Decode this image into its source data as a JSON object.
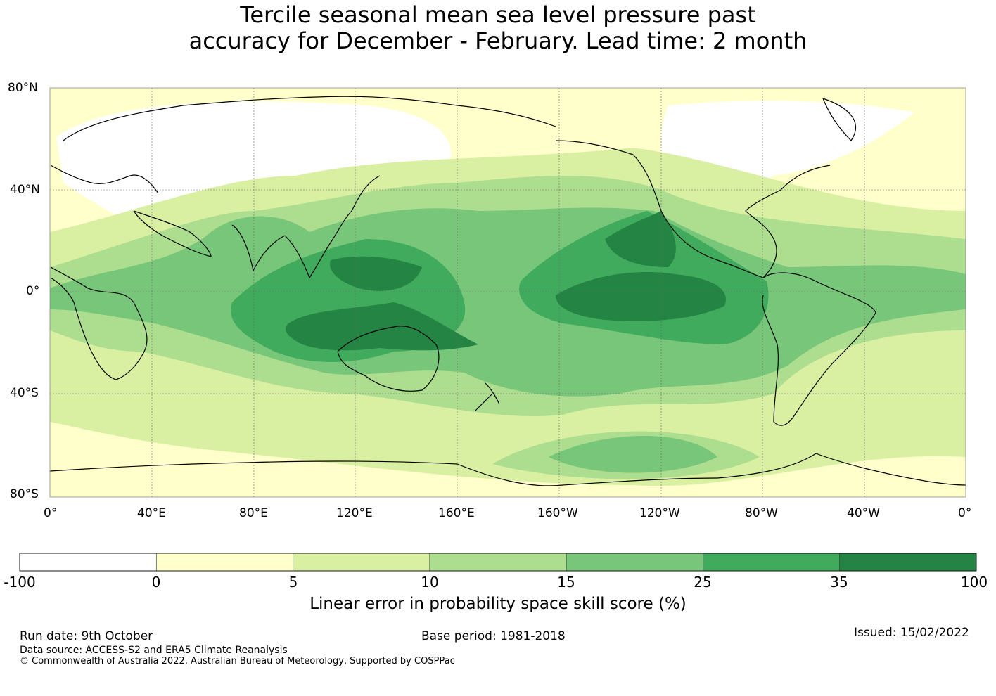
{
  "title": {
    "line1": "Tercile seasonal mean sea level pressure past",
    "line2": "accuracy for December - February. Lead time: 2 month"
  },
  "map": {
    "lat_labels": [
      "80°N",
      "40°N",
      "0°",
      "40°S",
      "80°S"
    ],
    "lon_labels": [
      "0°",
      "40°E",
      "80°E",
      "120°E",
      "160°E",
      "160°W",
      "120°W",
      "80°W",
      "40°W",
      "0°"
    ]
  },
  "colorbar": {
    "ticks": [
      "-100",
      "0",
      "5",
      "10",
      "15",
      "25",
      "35",
      "100"
    ],
    "colors": [
      "#ffffff",
      "#ffffcc",
      "#d9f0a3",
      "#addd8e",
      "#78c679",
      "#41ab5d",
      "#238443"
    ],
    "label": "Linear error in probability space skill score (%)"
  },
  "footer": {
    "run_date": "Run date: 9th October",
    "base_period": "Base period: 1981-2018",
    "issued": "Issued: 15/02/2022",
    "data_source": "Data source: ACCESS-S2 and ERA5 Climate Reanalysis",
    "copyright": "© Commonwealth of Australia 2022, Australian Bureau of Meteorology, Supported by COSPPac"
  }
}
